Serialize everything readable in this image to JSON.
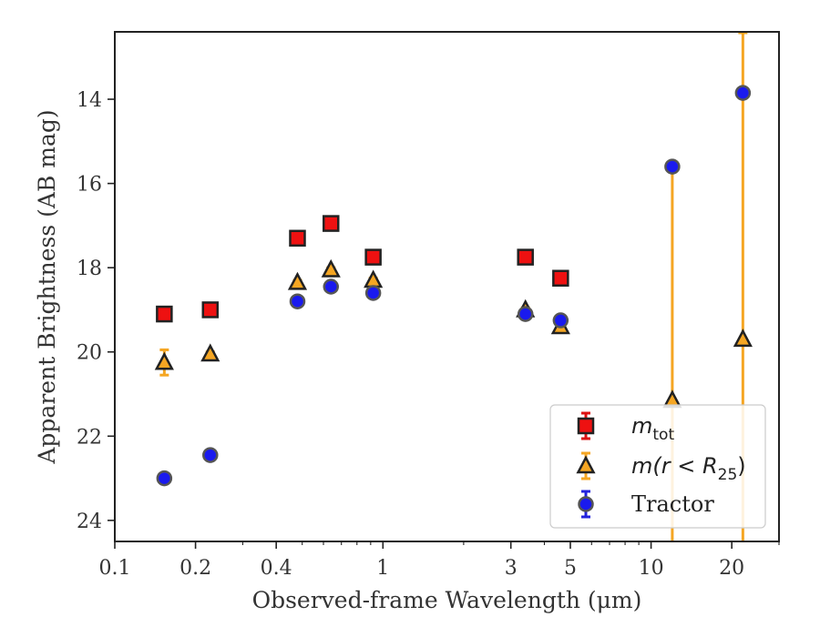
{
  "chart_data": {
    "type": "scatter",
    "xlabel": "Observed-frame Wavelength (μm)",
    "ylabel": "Apparent Brightness (AB mag)",
    "xscale": "log",
    "xlim": [
      0.1,
      30
    ],
    "ylim": [
      24.5,
      12.4
    ],
    "y_inverted": true,
    "x_ticks": [
      {
        "value": 0.1,
        "label": "0.1"
      },
      {
        "value": 0.2,
        "label": "0.2"
      },
      {
        "value": 0.4,
        "label": "0.4"
      },
      {
        "value": 1,
        "label": "1"
      },
      {
        "value": 3,
        "label": "3"
      },
      {
        "value": 5,
        "label": "5"
      },
      {
        "value": 10,
        "label": "10"
      },
      {
        "value": 20,
        "label": "20"
      }
    ],
    "y_ticks": [
      {
        "value": 14,
        "label": "14"
      },
      {
        "value": 16,
        "label": "16"
      },
      {
        "value": 18,
        "label": "18"
      },
      {
        "value": 20,
        "label": "20"
      },
      {
        "value": 22,
        "label": "22"
      },
      {
        "value": 24,
        "label": "24"
      }
    ],
    "grid": false,
    "legend_position": "lower-right",
    "series": [
      {
        "name": "m_tot",
        "legend_main": "m",
        "legend_sub": "tot",
        "marker": "square",
        "fill": "#ee1111",
        "edge": "#222222",
        "errcolor": "#dd1111",
        "points": [
          {
            "x": 0.153,
            "y": 19.1,
            "err": 0.05
          },
          {
            "x": 0.227,
            "y": 19.0,
            "err": 0.05
          },
          {
            "x": 0.48,
            "y": 17.3,
            "err": 0.05
          },
          {
            "x": 0.64,
            "y": 16.95,
            "err": 0.05
          },
          {
            "x": 0.92,
            "y": 17.75,
            "err": 0.05
          },
          {
            "x": 3.4,
            "y": 17.75,
            "err": 0.05
          },
          {
            "x": 4.6,
            "y": 18.25,
            "err": 0.05
          }
        ]
      },
      {
        "name": "m(r < R25)",
        "legend_main": "m(r < R",
        "legend_sub": "25",
        "legend_close": ")",
        "marker": "triangle",
        "fill": "#f5a623",
        "edge": "#222222",
        "errcolor": "#f5a623",
        "points": [
          {
            "x": 0.153,
            "y": 20.25,
            "err": 0.3
          },
          {
            "x": 0.227,
            "y": 20.05,
            "err": 0.05
          },
          {
            "x": 0.48,
            "y": 18.35,
            "err": 0.05
          },
          {
            "x": 0.64,
            "y": 18.05,
            "err": 0.05
          },
          {
            "x": 0.92,
            "y": 18.3,
            "err": 0.05
          },
          {
            "x": 3.4,
            "y": 19.0,
            "err": 0.05
          },
          {
            "x": 4.6,
            "y": 19.4,
            "err": 0.05
          },
          {
            "x": 12.0,
            "y": 21.15,
            "err": 5.5
          },
          {
            "x": 22.0,
            "y": 19.7,
            "err": 8.0
          }
        ]
      },
      {
        "name": "Tractor",
        "legend_main": "Tractor",
        "marker": "circle",
        "fill": "#1a1aee",
        "edge": "#555555",
        "errcolor": "#2222dd",
        "points": [
          {
            "x": 0.153,
            "y": 23.0,
            "err": 0.05
          },
          {
            "x": 0.227,
            "y": 22.45,
            "err": 0.05
          },
          {
            "x": 0.48,
            "y": 18.8,
            "err": 0.05
          },
          {
            "x": 0.64,
            "y": 18.45,
            "err": 0.05
          },
          {
            "x": 0.92,
            "y": 18.6,
            "err": 0.05
          },
          {
            "x": 3.4,
            "y": 19.1,
            "err": 0.05
          },
          {
            "x": 4.6,
            "y": 19.25,
            "err": 0.05
          },
          {
            "x": 12.0,
            "y": 15.6,
            "err": 0.05
          },
          {
            "x": 22.0,
            "y": 13.85,
            "err": 0.05
          }
        ]
      }
    ]
  }
}
